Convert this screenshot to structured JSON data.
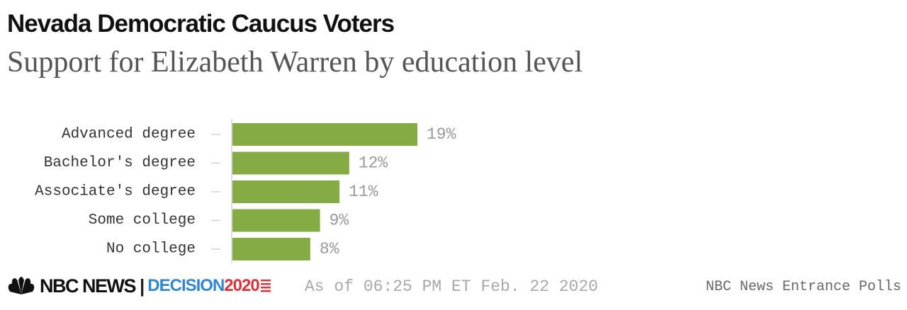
{
  "header": {
    "title": "Nevada Democratic Caucus Voters",
    "subtitle": "Support for Elizabeth Warren by education level"
  },
  "chart_data": {
    "type": "bar",
    "orientation": "horizontal",
    "categories": [
      "Advanced degree",
      "Bachelor's degree",
      "Associate's degree",
      "Some college",
      "No college"
    ],
    "values": [
      19,
      12,
      11,
      9,
      8
    ],
    "value_labels": [
      "19%",
      "12%",
      "11%",
      "9%",
      "8%"
    ],
    "xlim": [
      0,
      19
    ],
    "grid": false,
    "bar_color": "#85ab45"
  },
  "footer": {
    "logo_nbc": "NBC NEWS",
    "logo_decision": "DECISION",
    "logo_year": "2020",
    "timestamp": "As of 06:25 PM ET Feb. 22 2020",
    "source": "NBC News Entrance Polls"
  },
  "icons": [
    "nbc-peacock-icon",
    "flag-stripes-icon"
  ]
}
